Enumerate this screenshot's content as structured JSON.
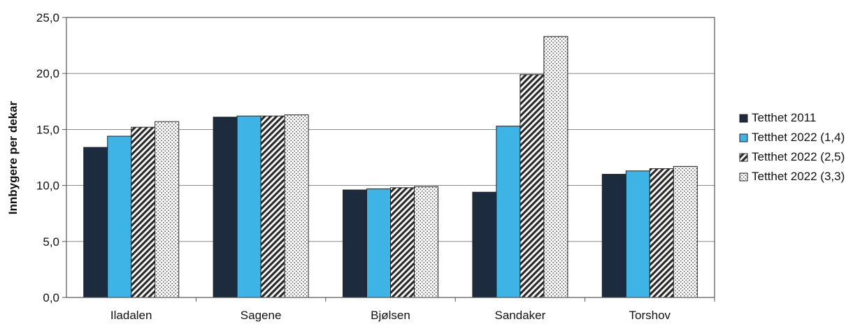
{
  "chart_data": {
    "type": "bar",
    "title": "",
    "xlabel": "",
    "ylabel": "Innbygere per dekar",
    "ylim": [
      0,
      25
    ],
    "yticks": [
      "0,0",
      "5,0",
      "10,0",
      "15,0",
      "20,0",
      "25,0"
    ],
    "grid": true,
    "legend_position": "right",
    "categories": [
      "Iladalen",
      "Sagene",
      "Bjølsen",
      "Sandaker",
      "Torshov"
    ],
    "series": [
      {
        "name": "Tetthet 2011",
        "values": [
          13.4,
          16.1,
          9.6,
          9.4,
          11.0
        ],
        "color": "#1c2b3d",
        "pattern": "solid"
      },
      {
        "name": "Tetthet 2022 (1,4)",
        "values": [
          14.4,
          16.2,
          9.7,
          15.3,
          11.3
        ],
        "color": "#3db3e6",
        "pattern": "solid"
      },
      {
        "name": "Tetthet 2022 (2,5)",
        "values": [
          15.2,
          16.2,
          9.8,
          19.9,
          11.5
        ],
        "color": "#2a2a2a",
        "pattern": "diagonal-hatch"
      },
      {
        "name": "Tetthet 2022 (3,3)",
        "values": [
          15.7,
          16.3,
          9.9,
          23.3,
          11.7
        ],
        "color": "#555555",
        "pattern": "dots"
      }
    ]
  }
}
